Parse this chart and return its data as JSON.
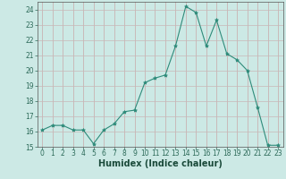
{
  "x": [
    0,
    1,
    2,
    3,
    4,
    5,
    6,
    7,
    8,
    9,
    10,
    11,
    12,
    13,
    14,
    15,
    16,
    17,
    18,
    19,
    20,
    21,
    22,
    23
  ],
  "y": [
    16.1,
    16.4,
    16.4,
    16.1,
    16.1,
    15.2,
    16.1,
    16.5,
    17.3,
    17.4,
    19.2,
    19.5,
    19.7,
    21.6,
    24.2,
    23.8,
    21.6,
    23.3,
    21.1,
    20.7,
    20.0,
    17.6,
    15.1,
    15.1
  ],
  "line_color": "#2e8b7a",
  "marker": "*",
  "marker_size": 3,
  "bg_color": "#cce9e5",
  "grid_color_v": "#c8a8a8",
  "grid_color_h": "#c8b8b8",
  "xlabel": "Humidex (Indice chaleur)",
  "ylim": [
    15,
    24.5
  ],
  "yticks": [
    15,
    16,
    17,
    18,
    19,
    20,
    21,
    22,
    23,
    24
  ],
  "xlim": [
    -0.5,
    23.5
  ],
  "xticks": [
    0,
    1,
    2,
    3,
    4,
    5,
    6,
    7,
    8,
    9,
    10,
    11,
    12,
    13,
    14,
    15,
    16,
    17,
    18,
    19,
    20,
    21,
    22,
    23
  ],
  "tick_fontsize": 5.5,
  "label_fontsize": 7
}
